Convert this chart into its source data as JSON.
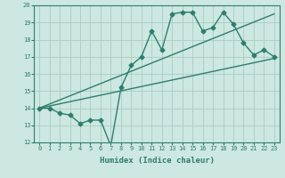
{
  "bg_color": "#cce8e0",
  "grid_color": "#aaccc4",
  "line_color": "#2e7d6e",
  "xlabel": "Humidex (Indice chaleur)",
  "xlim": [
    -0.5,
    23.5
  ],
  "ylim": [
    12,
    20
  ],
  "xticks": [
    0,
    1,
    2,
    3,
    4,
    5,
    6,
    7,
    8,
    9,
    10,
    11,
    12,
    13,
    14,
    15,
    16,
    17,
    18,
    19,
    20,
    21,
    22,
    23
  ],
  "yticks": [
    12,
    13,
    14,
    15,
    16,
    17,
    18,
    19,
    20
  ],
  "line1_x": [
    0,
    1,
    2,
    3,
    4,
    5,
    6,
    7,
    8,
    9,
    10,
    11,
    12,
    13,
    14,
    15,
    16,
    17,
    18,
    19,
    20,
    21,
    22,
    23
  ],
  "line1_y": [
    14.0,
    14.0,
    13.7,
    13.6,
    13.1,
    13.3,
    13.3,
    11.8,
    15.2,
    16.5,
    17.0,
    18.5,
    17.4,
    19.5,
    19.6,
    19.6,
    18.5,
    18.7,
    19.6,
    18.9,
    17.8,
    17.1,
    17.4,
    17.0
  ],
  "line2_x": [
    0,
    23
  ],
  "line2_y": [
    14.0,
    19.5
  ],
  "line3_x": [
    0,
    23
  ],
  "line3_y": [
    14.0,
    16.9
  ],
  "marker_size": 2.5,
  "linewidth": 1.0
}
